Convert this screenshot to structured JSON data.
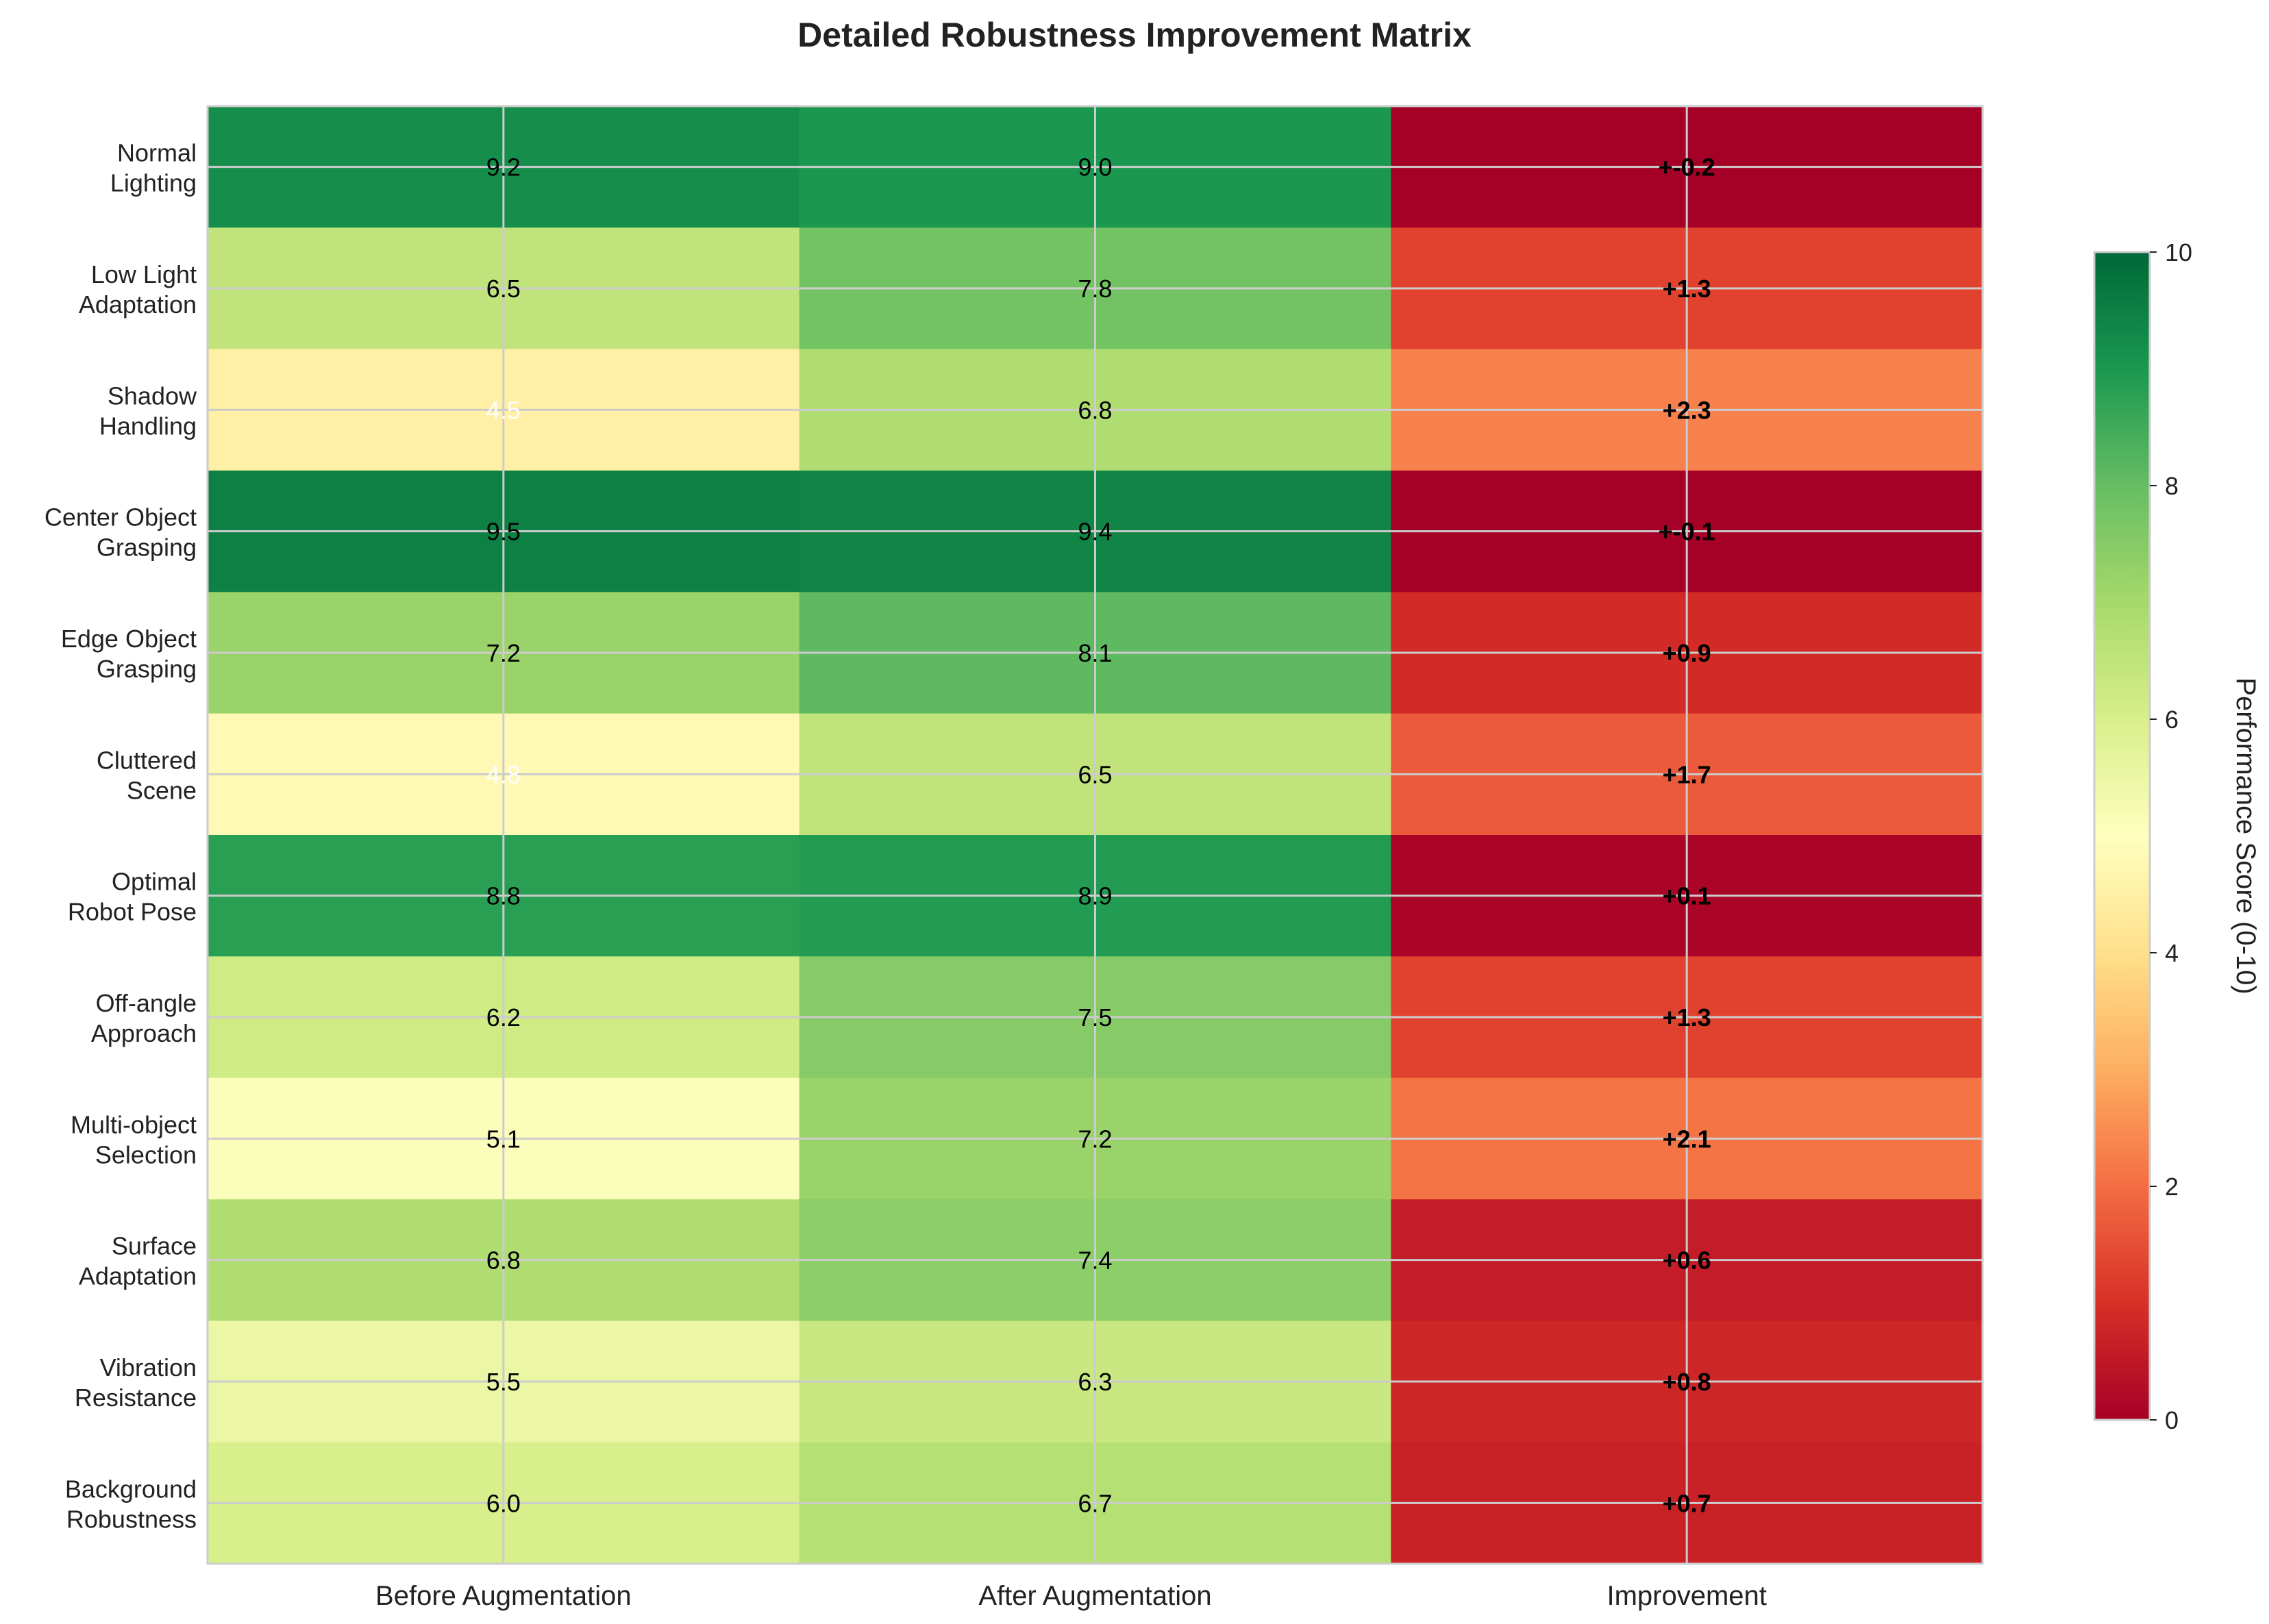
{
  "chart_data": {
    "type": "heatmap",
    "title": "Detailed Robustness Improvement Matrix",
    "rows": [
      [
        "Normal",
        "Lighting"
      ],
      [
        "Low Light",
        "Adaptation"
      ],
      [
        "Shadow",
        "Handling"
      ],
      [
        "Center Object",
        "Grasping"
      ],
      [
        "Edge Object",
        "Grasping"
      ],
      [
        "Cluttered",
        "Scene"
      ],
      [
        "Optimal",
        "Robot Pose"
      ],
      [
        "Off-angle",
        "Approach"
      ],
      [
        "Multi-object",
        "Selection"
      ],
      [
        "Surface",
        "Adaptation"
      ],
      [
        "Vibration",
        "Resistance"
      ],
      [
        "Background",
        "Robustness"
      ]
    ],
    "columns": [
      "Before Augmentation",
      "After Augmentation",
      "Improvement"
    ],
    "values": [
      [
        9.2,
        9.0,
        -0.2
      ],
      [
        6.5,
        7.8,
        1.3
      ],
      [
        4.5,
        6.8,
        2.3
      ],
      [
        9.5,
        9.4,
        -0.1
      ],
      [
        7.2,
        8.1,
        0.9
      ],
      [
        4.8,
        6.5,
        1.7
      ],
      [
        8.8,
        8.9,
        0.1
      ],
      [
        6.2,
        7.5,
        1.3
      ],
      [
        5.1,
        7.2,
        2.1
      ],
      [
        6.8,
        7.4,
        0.6
      ],
      [
        5.5,
        6.3,
        0.8
      ],
      [
        6.0,
        6.7,
        0.7
      ]
    ],
    "cell_labels": [
      [
        "9.2",
        "9.0",
        "+-0.2"
      ],
      [
        "6.5",
        "7.8",
        "+1.3"
      ],
      [
        "4.5",
        "6.8",
        "+2.3"
      ],
      [
        "9.5",
        "9.4",
        "+-0.1"
      ],
      [
        "7.2",
        "8.1",
        "+0.9"
      ],
      [
        "4.8",
        "6.5",
        "+1.7"
      ],
      [
        "8.8",
        "8.9",
        "+0.1"
      ],
      [
        "6.2",
        "7.5",
        "+1.3"
      ],
      [
        "5.1",
        "7.2",
        "+2.1"
      ],
      [
        "6.8",
        "7.4",
        "+0.6"
      ],
      [
        "5.5",
        "6.3",
        "+0.8"
      ],
      [
        "6.0",
        "6.7",
        "+0.7"
      ]
    ],
    "colormap": "RdYlGn",
    "color_range": [
      0,
      10
    ],
    "colorbar": {
      "label": "Performance Score (0-10)",
      "ticks": [
        0,
        2,
        4,
        6,
        8,
        10
      ]
    },
    "grid": true
  },
  "colors": {
    "grid": "#cccccc",
    "text_dark": "#000000",
    "text_light": "#ffffff"
  }
}
